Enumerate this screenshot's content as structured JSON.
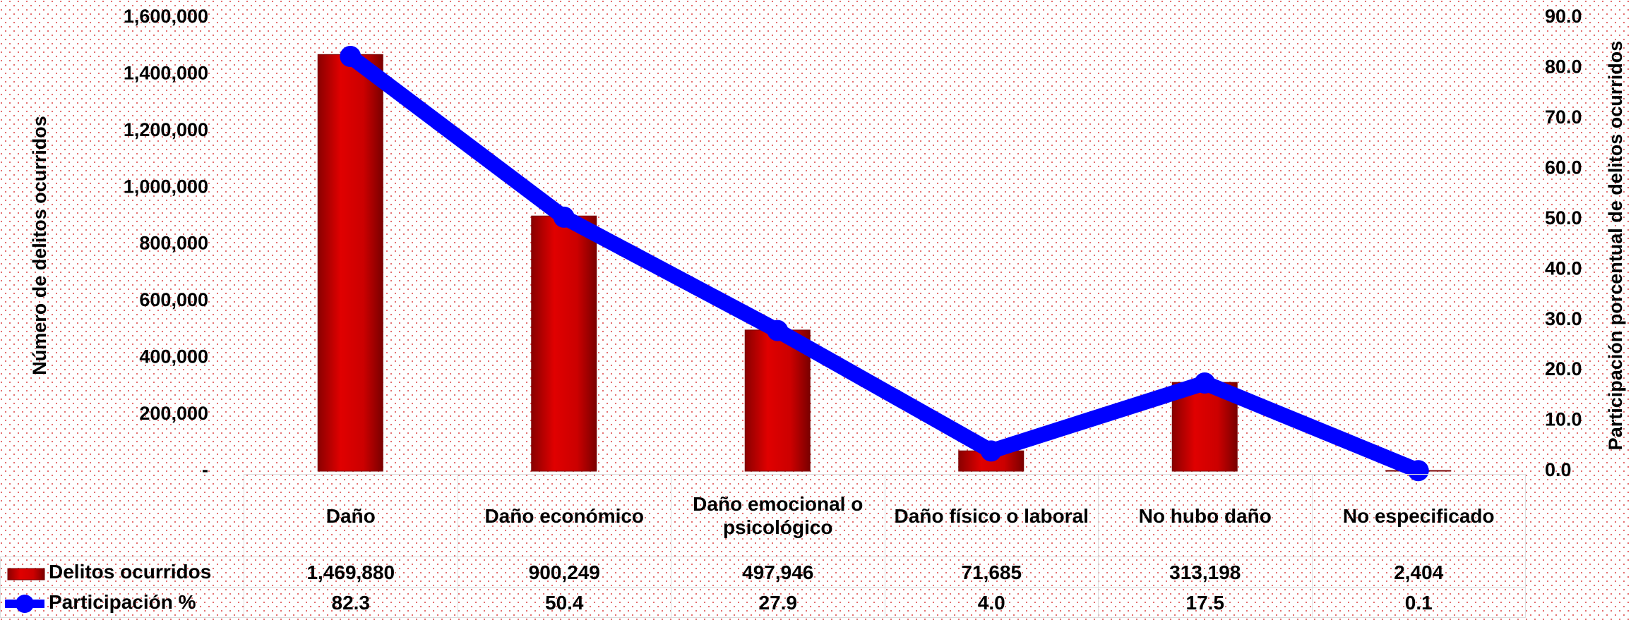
{
  "chart_data": {
    "type": "bar",
    "y_label": "Número de delitos ocurridos",
    "y2_label": "Participación porcentual de delitos ocurridos",
    "categories": [
      "Daño",
      "Daño económico",
      "Daño emocional o psicológico",
      "Daño físico o laboral",
      "No hubo daño",
      "No especificado"
    ],
    "series": [
      {
        "name": "Delitos ocurridos",
        "type": "bar",
        "color": "#cc0000",
        "values": [
          1469880,
          900249,
          497946,
          71685,
          313198,
          2404
        ],
        "value_labels": [
          "1,469,880",
          "900,249",
          "497,946",
          "71,685",
          "313,198",
          "2,404"
        ]
      },
      {
        "name": "Participación %",
        "type": "line",
        "axis": "y2",
        "color": "#0000ff",
        "values": [
          82.3,
          50.4,
          27.9,
          4.0,
          17.5,
          0.1
        ],
        "value_labels": [
          "82.3",
          "50.4",
          "27.9",
          "4.0",
          "17.5",
          "0.1"
        ]
      }
    ],
    "ylim": [
      0,
      1600000
    ],
    "yticks": [
      {
        "value": 0,
        "label": "-"
      },
      {
        "value": 200000,
        "label": "200,000"
      },
      {
        "value": 400000,
        "label": "400,000"
      },
      {
        "value": 600000,
        "label": "600,000"
      },
      {
        "value": 800000,
        "label": "800,000"
      },
      {
        "value": 1000000,
        "label": "1,000,000"
      },
      {
        "value": 1200000,
        "label": "1,200,000"
      },
      {
        "value": 1400000,
        "label": "1,400,000"
      },
      {
        "value": 1600000,
        "label": "1,600,000"
      }
    ],
    "y2lim": [
      0,
      90
    ],
    "y2ticks": [
      {
        "value": 0,
        "label": "0.0"
      },
      {
        "value": 10,
        "label": "10.0"
      },
      {
        "value": 20,
        "label": "20.0"
      },
      {
        "value": 30,
        "label": "30.0"
      },
      {
        "value": 40,
        "label": "40.0"
      },
      {
        "value": 50,
        "label": "50.0"
      },
      {
        "value": 60,
        "label": "60.0"
      },
      {
        "value": 70,
        "label": "70.0"
      },
      {
        "value": 80,
        "label": "80.0"
      },
      {
        "value": 90,
        "label": "90.0"
      }
    ]
  }
}
